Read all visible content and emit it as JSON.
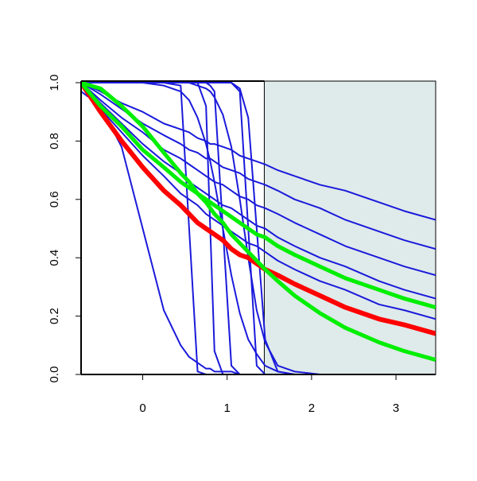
{
  "chart_data": {
    "type": "line",
    "x": [
      -0.73,
      -0.5,
      -0.25,
      0,
      0.25,
      0.45,
      0.55,
      0.65,
      0.75,
      0.8,
      0.85,
      0.95,
      1.05,
      1.15,
      1.25,
      1.35,
      1.45,
      1.6,
      1.8,
      2.1,
      2.4,
      2.8,
      3.1,
      3.47
    ],
    "xlim": [
      -0.73,
      3.47
    ],
    "xticks": [
      0,
      1,
      2,
      3
    ],
    "ylim": [
      0,
      1
    ],
    "yticks": [
      {
        "value": 0,
        "label": "0.0"
      },
      0.2,
      0.4,
      0.6,
      0.8,
      {
        "value": 1,
        "label": "1.0"
      }
    ],
    "highlight_xrange": [
      1.44,
      3.47
    ],
    "highlight_color": "#dfeaea",
    "series": [
      {
        "color": "#1a1adb",
        "line_width": 2,
        "values": [
          1,
          1,
          1,
          1,
          1,
          0.99,
          0.5,
          0.01,
          0,
          0,
          0,
          0,
          0,
          0,
          0,
          0,
          0,
          0,
          0,
          0,
          0,
          0,
          0,
          0
        ]
      },
      {
        "color": "#1a1adb",
        "line_width": 2,
        "values": [
          1,
          1,
          1,
          1,
          1,
          1,
          1,
          1,
          0.92,
          0.5,
          0.08,
          0,
          0,
          0,
          0,
          0,
          0,
          0,
          0,
          0,
          0,
          0,
          0,
          0
        ]
      },
      {
        "color": "#1a1adb",
        "line_width": 2,
        "values": [
          1,
          1,
          1,
          1,
          1,
          1,
          1,
          1,
          1,
          0.99,
          0.97,
          0.5,
          0.03,
          0,
          0,
          0,
          0,
          0,
          0,
          0,
          0,
          0,
          0,
          0
        ]
      },
      {
        "color": "#1a1adb",
        "line_width": 2,
        "values": [
          1,
          1,
          1,
          1,
          1,
          1,
          1,
          1,
          1,
          1,
          1,
          1,
          1,
          0.97,
          0.5,
          0.03,
          0,
          0,
          0,
          0,
          0,
          0,
          0,
          0
        ]
      },
      {
        "color": "#1a1adb",
        "line_width": 2,
        "values": [
          1,
          1,
          1,
          1,
          1,
          1,
          1,
          1,
          1,
          1,
          1,
          1,
          1,
          0.98,
          0.88,
          0.5,
          0.12,
          0.01,
          0,
          0,
          0,
          0,
          0,
          0
        ]
      },
      {
        "color": "#1a1adb",
        "line_width": 2,
        "values": [
          1,
          1,
          1,
          1,
          1,
          1,
          1,
          0.99,
          0.98,
          0.97,
          0.95,
          0.89,
          0.78,
          0.6,
          0.4,
          0.22,
          0.11,
          0.03,
          0.01,
          0,
          0,
          0,
          0,
          0
        ]
      },
      {
        "color": "#1a1adb",
        "line_width": 2,
        "values": [
          0.97,
          0.92,
          0.78,
          0.5,
          0.22,
          0.1,
          0.06,
          0.04,
          0.02,
          0.02,
          0.01,
          0.01,
          0.01,
          0,
          0,
          0,
          0,
          0,
          0,
          0,
          0,
          0,
          0,
          0
        ]
      },
      {
        "color": "#1a1adb",
        "line_width": 2,
        "values": [
          1,
          1,
          1,
          1,
          0.99,
          0.97,
          0.94,
          0.88,
          0.79,
          0.73,
          0.66,
          0.5,
          0.34,
          0.21,
          0.12,
          0.07,
          0.03,
          0.01,
          0,
          0,
          0,
          0,
          0,
          0
        ]
      },
      {
        "color": "#1a1adb",
        "line_width": 2,
        "values": [
          1,
          0.97,
          0.93,
          0.9,
          0.86,
          0.84,
          0.83,
          0.81,
          0.8,
          0.79,
          0.79,
          0.78,
          0.77,
          0.75,
          0.74,
          0.73,
          0.72,
          0.7,
          0.68,
          0.65,
          0.63,
          0.59,
          0.56,
          0.53
        ]
      },
      {
        "color": "#1a1adb",
        "line_width": 2,
        "values": [
          1,
          0.96,
          0.91,
          0.86,
          0.82,
          0.79,
          0.77,
          0.76,
          0.74,
          0.74,
          0.73,
          0.71,
          0.7,
          0.69,
          0.67,
          0.66,
          0.65,
          0.63,
          0.6,
          0.57,
          0.53,
          0.49,
          0.46,
          0.43
        ]
      },
      {
        "color": "#1a1adb",
        "line_width": 2,
        "values": [
          1,
          0.94,
          0.88,
          0.83,
          0.77,
          0.74,
          0.72,
          0.7,
          0.68,
          0.67,
          0.66,
          0.65,
          0.63,
          0.61,
          0.6,
          0.58,
          0.57,
          0.55,
          0.52,
          0.48,
          0.44,
          0.4,
          0.37,
          0.34
        ]
      },
      {
        "color": "#1a1adb",
        "line_width": 2,
        "values": [
          1,
          0.93,
          0.86,
          0.79,
          0.73,
          0.69,
          0.66,
          0.64,
          0.62,
          0.61,
          0.6,
          0.58,
          0.57,
          0.55,
          0.53,
          0.51,
          0.5,
          0.47,
          0.44,
          0.4,
          0.37,
          0.32,
          0.29,
          0.26
        ]
      },
      {
        "color": "#1a1adb",
        "line_width": 2,
        "values": [
          1,
          0.91,
          0.83,
          0.75,
          0.68,
          0.62,
          0.6,
          0.58,
          0.55,
          0.54,
          0.53,
          0.51,
          0.49,
          0.47,
          0.45,
          0.44,
          0.42,
          0.39,
          0.36,
          0.32,
          0.29,
          0.24,
          0.22,
          0.19
        ]
      },
      {
        "color": "#ff0000",
        "line_width": 6,
        "values": [
          1,
          0.9,
          0.8,
          0.71,
          0.63,
          0.58,
          0.55,
          0.52,
          0.5,
          0.49,
          0.48,
          0.46,
          0.43,
          0.41,
          0.4,
          0.38,
          0.36,
          0.34,
          0.31,
          0.27,
          0.23,
          0.19,
          0.17,
          0.14
        ]
      },
      {
        "color": "#00ee00",
        "line_width": 5,
        "values": [
          1,
          0.92,
          0.85,
          0.77,
          0.71,
          0.66,
          0.64,
          0.62,
          0.6,
          0.59,
          0.58,
          0.56,
          0.54,
          0.52,
          0.5,
          0.48,
          0.47,
          0.44,
          0.41,
          0.37,
          0.33,
          0.29,
          0.26,
          0.23
        ]
      },
      {
        "color": "#00ee00",
        "line_width": 5,
        "values": [
          1,
          0.98,
          0.92,
          0.85,
          0.76,
          0.69,
          0.66,
          0.62,
          0.59,
          0.57,
          0.55,
          0.52,
          0.48,
          0.45,
          0.42,
          0.39,
          0.36,
          0.32,
          0.27,
          0.21,
          0.16,
          0.11,
          0.08,
          0.05
        ]
      }
    ]
  }
}
